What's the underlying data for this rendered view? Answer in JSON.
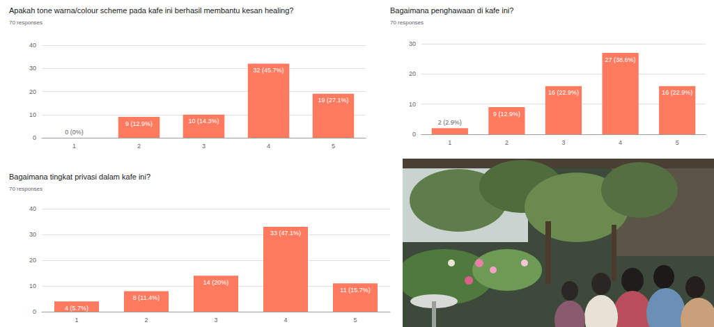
{
  "chart_data": [
    {
      "type": "bar",
      "title": "Apakah tone warna/colour scheme pada kafe ini berhasil membantu kesan healing?",
      "subtitle": "70 responses",
      "categories": [
        "1",
        "2",
        "3",
        "4",
        "5"
      ],
      "values": [
        0,
        9,
        10,
        32,
        19
      ],
      "value_labels": [
        "0 (0%)",
        "9 (12.9%)",
        "10 (14.3%)",
        "32 (45.7%)",
        "19 (27.1%)"
      ],
      "color": "#ff7a5f",
      "ylim": [
        0,
        40
      ],
      "yticks": [
        0,
        10,
        20,
        30,
        40
      ],
      "grid": true,
      "data_labels": true
    },
    {
      "type": "bar",
      "title": "Bagaimana penghawaan di kafe ini?",
      "subtitle": "70 responses",
      "categories": [
        "1",
        "2",
        "3",
        "4",
        "5"
      ],
      "values": [
        2,
        9,
        16,
        27,
        16
      ],
      "value_labels": [
        "2 (2.9%)",
        "9 (12.9%)",
        "16 (22.9%)",
        "27 (38.6%)",
        "16 (22.9%)"
      ],
      "color": "#ff7a5f",
      "ylim": [
        0,
        30
      ],
      "yticks": [
        0,
        10,
        20,
        30
      ],
      "grid": true,
      "data_labels": true
    },
    {
      "type": "bar",
      "title": "Bagaimana tingkat privasi dalam kafe ini?",
      "subtitle": "70 responses",
      "categories": [
        "1",
        "2",
        "3",
        "4",
        "5"
      ],
      "values": [
        4,
        8,
        14,
        33,
        11
      ],
      "value_labels": [
        "4 (5.7%)",
        "8 (11.4%)",
        "14 (20%)",
        "33 (47.1%)",
        "11 (15.7%)"
      ],
      "color": "#ff7a5f",
      "ylim": [
        0,
        40
      ],
      "yticks": [
        0,
        10,
        20,
        30,
        40
      ],
      "grid": true,
      "data_labels": true
    }
  ]
}
